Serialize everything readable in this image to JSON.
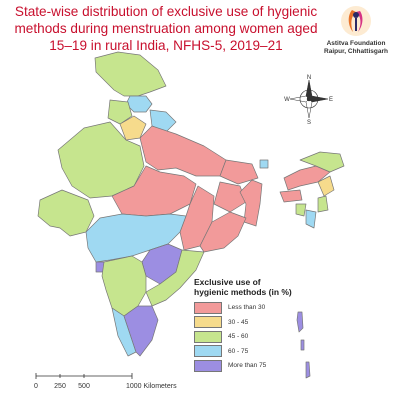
{
  "title": {
    "line1": "State-wise distribution of exclusive use of hygienic",
    "line2": "methods during menstruation among women aged",
    "line3": "15–19 in rural India, NFHS-5, 2019–21"
  },
  "brand": {
    "name": "Astitva Foundation",
    "location": "Raipur, Chhattisgarh"
  },
  "compass": {
    "n": "N",
    "s": "S",
    "e": "E",
    "w": "W"
  },
  "legend": {
    "title_line1": "Exclusive use of",
    "title_line2": "hygienic methods (in %)",
    "items": [
      {
        "label": "Less than 30",
        "color": "#f29a9a"
      },
      {
        "label": "30 - 45",
        "color": "#f6db8c"
      },
      {
        "label": "45 - 60",
        "color": "#c6e58e"
      },
      {
        "label": "60 - 75",
        "color": "#9fd9f2"
      },
      {
        "label": "More than 75",
        "color": "#9c8ee2"
      }
    ]
  },
  "scale": {
    "t0": "0",
    "t1": "250",
    "t2": "500",
    "t3": "1000 Kilometers"
  },
  "colors": {
    "title": "#c8102e",
    "less_than_30": "#f29a9a",
    "c30_45": "#f6db8c",
    "c45_60": "#c6e58e",
    "c60_75": "#9fd9f2",
    "more_than_75": "#9c8ee2",
    "border": "#777777"
  }
}
